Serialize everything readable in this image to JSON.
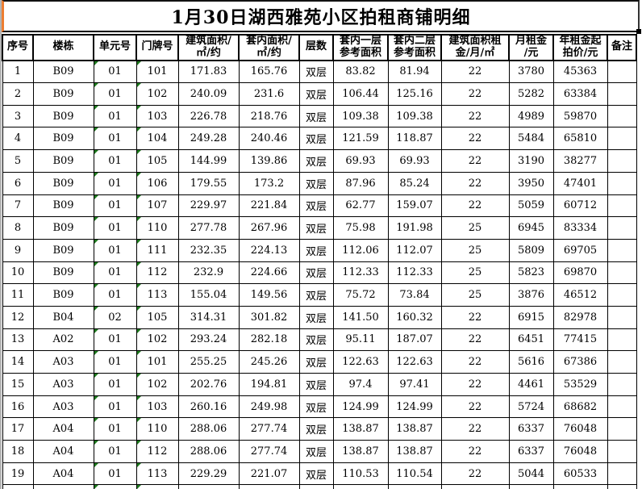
{
  "title": "1月30日湖西雅苑小区拍租商铺明细",
  "colors": {
    "grid": "#000000",
    "background": "#ffffff",
    "title_left_border_orange": "#ed7d31",
    "error_indicator_green": "#1e7a1e",
    "sheet_edge_gray": "#b4b4b4"
  },
  "table": {
    "columns": [
      {
        "key": "xuhao",
        "label": "序号"
      },
      {
        "key": "loudong",
        "label": "楼栋"
      },
      {
        "key": "danyuanhao",
        "label": "单元号"
      },
      {
        "key": "menpaihao",
        "label": "门牌号"
      },
      {
        "key": "jianzhumianji",
        "label": "建筑面积/\n㎡/约"
      },
      {
        "key": "taoneimianji",
        "label": "套内面积/\n㎡/约"
      },
      {
        "key": "cengshu",
        "label": "层数"
      },
      {
        "key": "yiceng",
        "label": "套内一层\n参考面积"
      },
      {
        "key": "erceng",
        "label": "套内二层\n参考面积"
      },
      {
        "key": "zujin",
        "label": "建筑面积租\n金/月/㎡"
      },
      {
        "key": "yuezujin",
        "label": "月租金\n/元"
      },
      {
        "key": "nianzujin",
        "label": "年租金起\n拍价/元"
      },
      {
        "key": "beizhu",
        "label": "备注"
      }
    ],
    "rows": [
      [
        "1",
        "B09",
        "01",
        "101",
        "171.83",
        "165.76",
        "双层",
        "83.82",
        "81.94",
        "22",
        "3780",
        "45363",
        ""
      ],
      [
        "2",
        "B09",
        "01",
        "102",
        "240.09",
        "231.6",
        "双层",
        "106.44",
        "125.16",
        "22",
        "5282",
        "63384",
        ""
      ],
      [
        "3",
        "B09",
        "01",
        "103",
        "226.78",
        "218.76",
        "双层",
        "109.38",
        "109.38",
        "22",
        "4989",
        "59870",
        ""
      ],
      [
        "4",
        "B09",
        "01",
        "104",
        "249.28",
        "240.46",
        "双层",
        "121.59",
        "118.87",
        "22",
        "5484",
        "65810",
        ""
      ],
      [
        "5",
        "B09",
        "01",
        "105",
        "144.99",
        "139.86",
        "双层",
        "69.93",
        "69.93",
        "22",
        "3190",
        "38277",
        ""
      ],
      [
        "6",
        "B09",
        "01",
        "106",
        "179.55",
        "173.2",
        "双层",
        "87.96",
        "85.24",
        "22",
        "3950",
        "47401",
        ""
      ],
      [
        "7",
        "B09",
        "01",
        "107",
        "229.97",
        "221.84",
        "双层",
        "62.77",
        "159.07",
        "22",
        "5059",
        "60712",
        ""
      ],
      [
        "8",
        "B09",
        "01",
        "110",
        "277.78",
        "267.96",
        "双层",
        "75.98",
        "191.98",
        "25",
        "6945",
        "83334",
        ""
      ],
      [
        "9",
        "B09",
        "01",
        "111",
        "232.35",
        "224.13",
        "双层",
        "112.06",
        "112.07",
        "25",
        "5809",
        "69705",
        ""
      ],
      [
        "10",
        "B09",
        "01",
        "112",
        "232.9",
        "224.66",
        "双层",
        "112.33",
        "112.33",
        "25",
        "5823",
        "69870",
        ""
      ],
      [
        "11",
        "B09",
        "01",
        "113",
        "155.04",
        "149.56",
        "双层",
        "75.72",
        "73.84",
        "25",
        "3876",
        "46512",
        ""
      ],
      [
        "12",
        "B04",
        "02",
        "105",
        "314.31",
        "301.82",
        "双层",
        "141.50",
        "160.32",
        "22",
        "6915",
        "82978",
        ""
      ],
      [
        "13",
        "A02",
        "01",
        "102",
        "293.24",
        "282.18",
        "双层",
        "95.11",
        "187.07",
        "22",
        "6451",
        "77415",
        ""
      ],
      [
        "14",
        "A03",
        "01",
        "101",
        "255.25",
        "245.26",
        "双层",
        "122.63",
        "122.63",
        "22",
        "5616",
        "67386",
        ""
      ],
      [
        "15",
        "A03",
        "01",
        "102",
        "202.76",
        "194.81",
        "双层",
        "97.4",
        "97.41",
        "22",
        "4461",
        "53529",
        ""
      ],
      [
        "16",
        "A03",
        "01",
        "103",
        "260.16",
        "249.98",
        "双层",
        "124.99",
        "124.99",
        "22",
        "5724",
        "68682",
        ""
      ],
      [
        "17",
        "A04",
        "01",
        "110",
        "288.06",
        "277.74",
        "双层",
        "138.87",
        "138.87",
        "22",
        "6337",
        "76048",
        ""
      ],
      [
        "18",
        "A04",
        "01",
        "112",
        "288.06",
        "277.74",
        "双层",
        "138.87",
        "138.87",
        "22",
        "6337",
        "76048",
        ""
      ],
      [
        "19",
        "A04",
        "01",
        "113",
        "229.29",
        "221.07",
        "双层",
        "110.53",
        "110.54",
        "22",
        "5044",
        "60533",
        ""
      ]
    ],
    "partial_next_row": true
  }
}
